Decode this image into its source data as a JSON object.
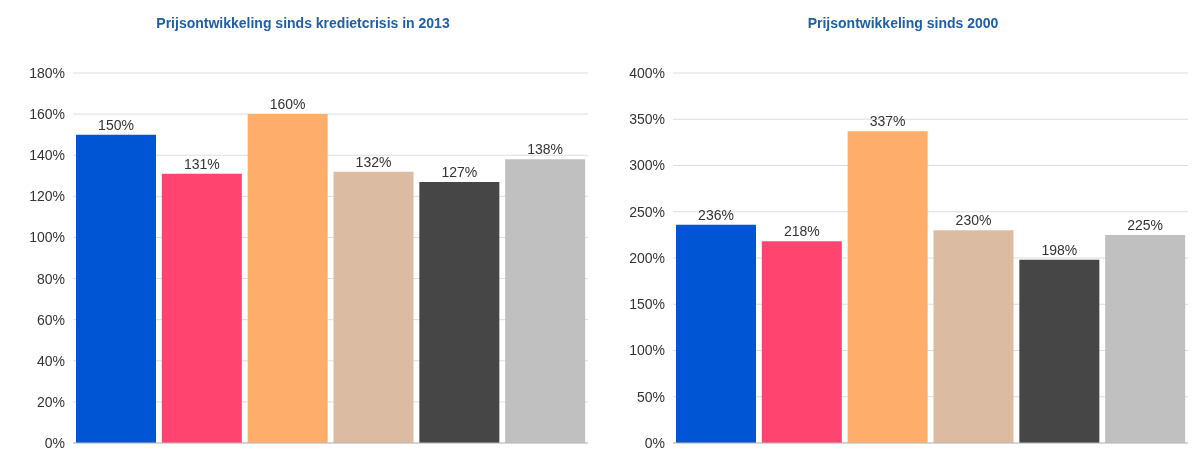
{
  "chart_data": [
    {
      "type": "bar",
      "title": "Prijsontwikkeling sinds kredietcrisis in 2013",
      "categories": [
        null,
        null,
        null,
        null,
        null,
        null
      ],
      "values": [
        150,
        131,
        160,
        132,
        127,
        138
      ],
      "colors": [
        "#0055d4",
        "#ff4470",
        "#ffad6b",
        "#dbbca3",
        "#464646",
        "#c0c0c0"
      ],
      "value_labels": [
        "150%",
        "131%",
        "160%",
        "132%",
        "127%",
        "138%"
      ],
      "ylim": [
        0,
        180
      ],
      "yticks": [
        {
          "value": 0,
          "label": "0%"
        },
        {
          "value": 20,
          "label": "20%"
        },
        {
          "value": 40,
          "label": "40%"
        },
        {
          "value": 60,
          "label": "60%"
        },
        {
          "value": 80,
          "label": "80%"
        },
        {
          "value": 100,
          "label": "100%"
        },
        {
          "value": 120,
          "label": "120%"
        },
        {
          "value": 140,
          "label": "140%"
        },
        {
          "value": 160,
          "label": "160%"
        },
        {
          "value": 180,
          "label": "180%"
        }
      ],
      "grid": "y",
      "legend": false
    },
    {
      "type": "bar",
      "title": "Prijsontwikkeling sinds 2000",
      "categories": [
        null,
        null,
        null,
        null,
        null,
        null
      ],
      "values": [
        236,
        218,
        337,
        230,
        198,
        225
      ],
      "colors": [
        "#0055d4",
        "#ff4470",
        "#ffad6b",
        "#dbbca3",
        "#464646",
        "#c0c0c0"
      ],
      "value_labels": [
        "236%",
        "218%",
        "337%",
        "230%",
        "198%",
        "225%"
      ],
      "ylim": [
        0,
        400
      ],
      "yticks": [
        {
          "value": 0,
          "label": "0%"
        },
        {
          "value": 50,
          "label": "50%"
        },
        {
          "value": 100,
          "label": "100%"
        },
        {
          "value": 150,
          "label": "150%"
        },
        {
          "value": 200,
          "label": "200%"
        },
        {
          "value": 250,
          "label": "250%"
        },
        {
          "value": 300,
          "label": "300%"
        },
        {
          "value": 350,
          "label": "350%"
        },
        {
          "value": 400,
          "label": "400%"
        }
      ],
      "grid": "y",
      "legend": false
    }
  ]
}
